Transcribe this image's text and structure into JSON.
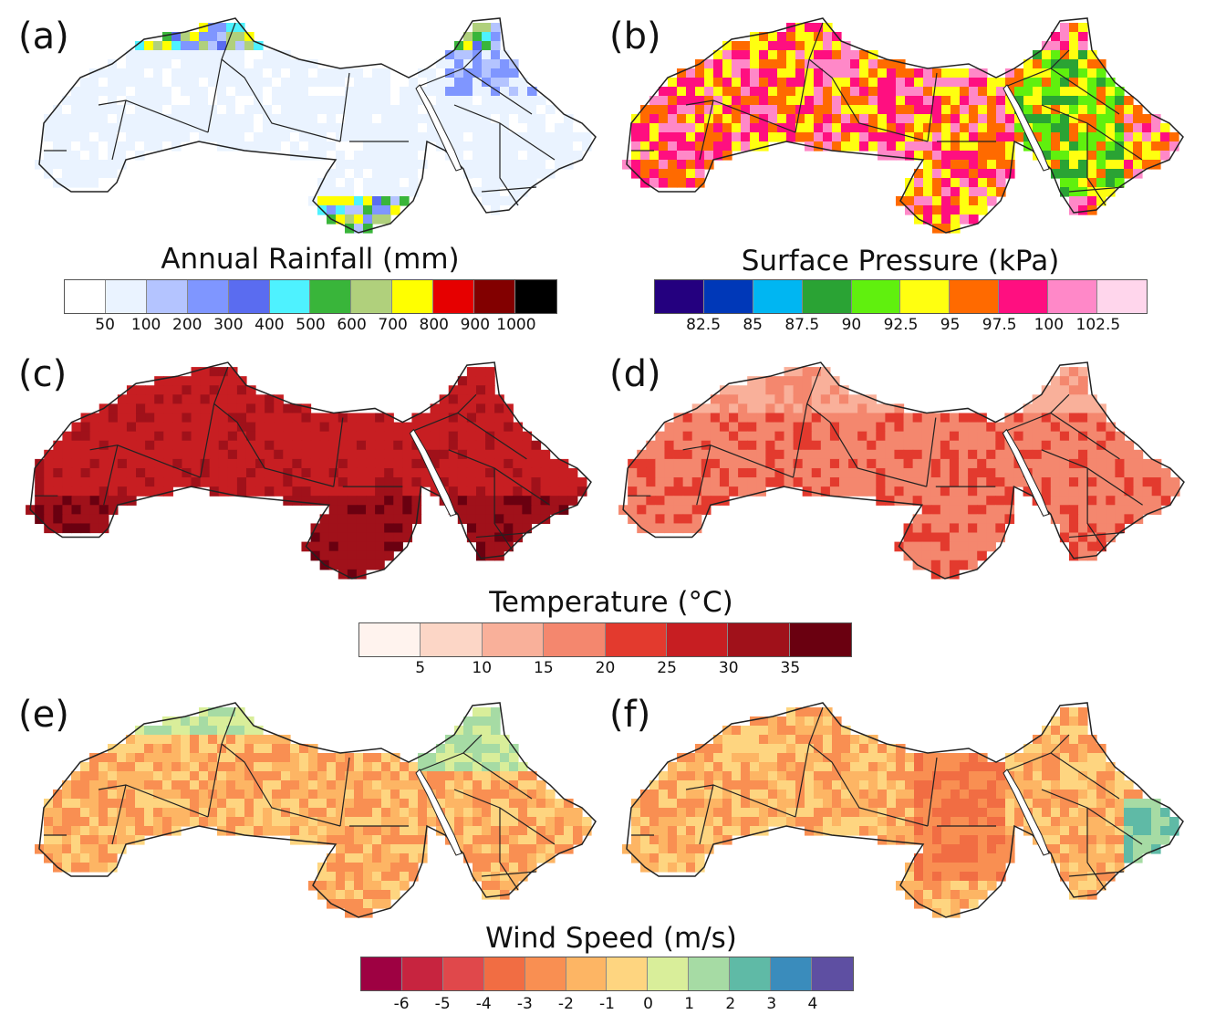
{
  "panels": [
    {
      "label": "(a)",
      "variable": "rainfall",
      "colorbar": "rain"
    },
    {
      "label": "(b)",
      "variable": "pressure",
      "colorbar": "pressure"
    },
    {
      "label": "(c)",
      "variable": "temperature",
      "colorbar": "temp"
    },
    {
      "label": "(d)",
      "variable": "temperature",
      "colorbar": "temp"
    },
    {
      "label": "(e)",
      "variable": "wind",
      "colorbar": "wind"
    },
    {
      "label": "(f)",
      "variable": "wind",
      "colorbar": "wind"
    }
  ],
  "colorbars": {
    "rain": {
      "title": "Annual Rainfall (mm)",
      "colors": [
        "#ffffff",
        "#eaf3ff",
        "#b4c4ff",
        "#7f96ff",
        "#5a6cf0",
        "#4ef2ff",
        "#39b53a",
        "#b0d07c",
        "#ffff00",
        "#e60000",
        "#820000",
        "#000000"
      ],
      "ticks": [
        "50",
        "100",
        "200",
        "300",
        "400",
        "500",
        "600",
        "700",
        "800",
        "900",
        "1000"
      ],
      "tick_slots": [
        1,
        2,
        3,
        4,
        5,
        6,
        7,
        8,
        9,
        10,
        11
      ]
    },
    "pressure": {
      "title": "Surface Pressure (kPa)",
      "colors": [
        "#24007f",
        "#0038b8",
        "#00b6f2",
        "#2aa334",
        "#60f00e",
        "#ffff10",
        "#ff6a00",
        "#ff0f80",
        "#ff88c8",
        "#ffd6ec"
      ],
      "ticks": [
        "82.5",
        "85",
        "87.5",
        "90",
        "92.5",
        "95",
        "97.5",
        "100",
        "102.5"
      ],
      "tick_slots": [
        1,
        2,
        3,
        4,
        5,
        6,
        7,
        8,
        9
      ]
    },
    "temp": {
      "title": "Temperature (°C)",
      "colors": [
        "#fff3ee",
        "#fcd6c6",
        "#f9b09a",
        "#f4876e",
        "#e33a2e",
        "#c71e22",
        "#a0111a",
        "#6a0010"
      ],
      "ticks": [
        "5",
        "10",
        "15",
        "20",
        "25",
        "30",
        "35"
      ],
      "tick_slots": [
        1,
        2,
        3,
        4,
        5,
        6,
        7
      ]
    },
    "wind": {
      "title": "Wind Speed (m/s)",
      "colors": [
        "#9e0142",
        "#c7243f",
        "#e0484b",
        "#f16d43",
        "#f98f52",
        "#fdb564",
        "#fed580",
        "#d9ee9a",
        "#a6dba4",
        "#5fbaa6",
        "#3a8cbc",
        "#5e4fa2"
      ],
      "ticks": [
        "-6",
        "-5",
        "-4",
        "-3",
        "-2",
        "-1",
        "0",
        "1",
        "2",
        "3",
        "4"
      ],
      "tick_slots": [
        1,
        2,
        3,
        4,
        5,
        6,
        7,
        8,
        9,
        10,
        11
      ]
    }
  }
}
